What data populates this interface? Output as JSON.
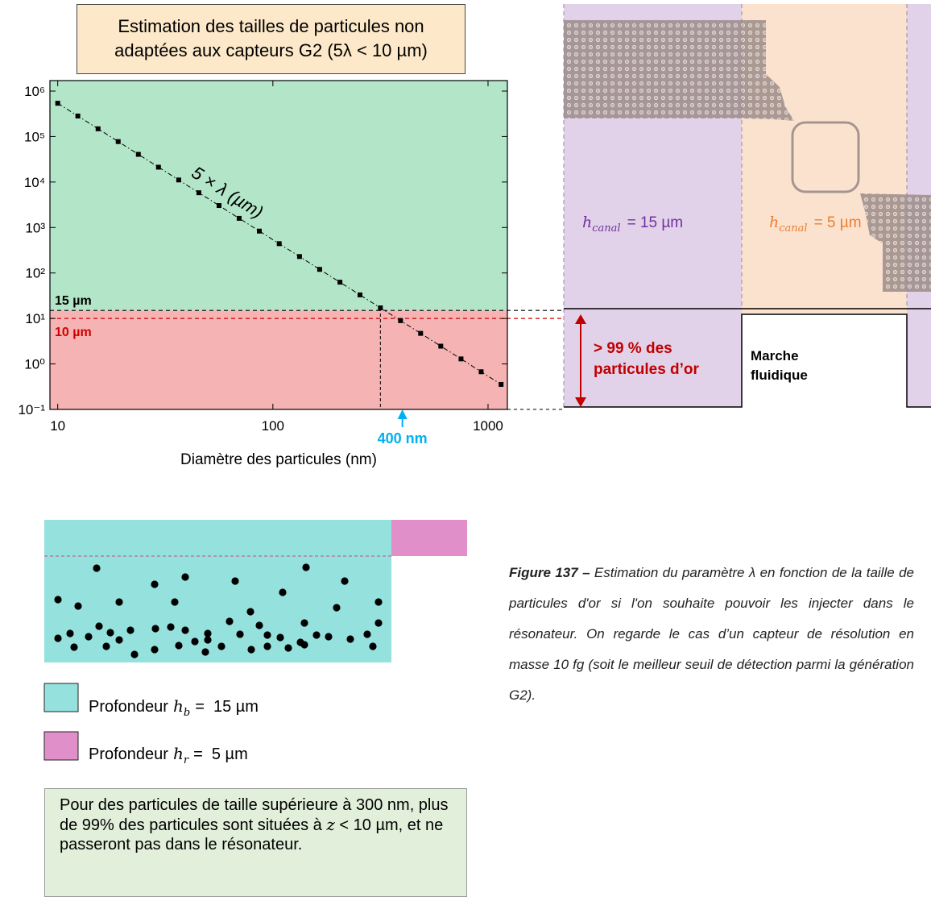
{
  "chart_data": {
    "type": "line",
    "title": "Estimation des tailles de particules non adaptées aux capteurs G2 (5λ < 10 µm)",
    "x_label": "Diamètre des particules (nm)",
    "x_log": true,
    "y_log": true,
    "xlim": [
      9.2,
      1230
    ],
    "ylim": [
      0.1,
      1700000
    ],
    "xticks": [
      10,
      100,
      1000
    ],
    "yticks": [
      {
        "value": 0.1,
        "label": "10⁻¹"
      },
      {
        "value": 1,
        "label": "10⁰"
      },
      {
        "value": 10,
        "label": "10¹"
      },
      {
        "value": 100,
        "label": "10²"
      },
      {
        "value": 1000,
        "label": "10³"
      },
      {
        "value": 10000,
        "label": "10⁴"
      },
      {
        "value": 100000,
        "label": "10⁵"
      },
      {
        "value": 1000000,
        "label": "10⁶"
      }
    ],
    "x": [
      10,
      12.4,
      15.4,
      19.1,
      23.7,
      29.4,
      36.5,
      45.3,
      56.2,
      69.7,
      86.5,
      107,
      133,
      165,
      205,
      254,
      316,
      392,
      486,
      603,
      749,
      929,
      1150
    ],
    "series": [
      {
        "name": "5 × λ (µm)",
        "color": "#000000",
        "values": [
          540000,
          283000,
          148000,
          77500,
          40600,
          21200,
          11100,
          5810,
          3040,
          1590,
          834,
          441,
          230,
          120,
          62.7,
          33.0,
          17.1,
          8.96,
          4.7,
          2.46,
          1.29,
          0.673,
          0.355
        ]
      }
    ],
    "region_colors": [
      "#f5b3b3",
      "#b3e6c9"
    ],
    "thresholds": [
      {
        "label": "15 µm",
        "value": 15,
        "color": "#000000"
      },
      {
        "label": "10 µm",
        "value": 10,
        "color": "#d00000"
      }
    ],
    "marker": {
      "label": "400 nm",
      "x": 400,
      "color": "#00b0f0"
    }
  },
  "diagram": {
    "left_label": {
      "symbol": "h",
      "sub": "canal",
      "text": "= 15 µm"
    },
    "right_label": {
      "symbol": "h",
      "sub": "canal",
      "text": "= 5 µm"
    },
    "arrow_label": [
      "> 99 % des",
      "particules d’or"
    ],
    "step_label": [
      "Marche",
      "fluidique"
    ]
  },
  "legend": [
    {
      "prefix": "Profondeur",
      "symbol": "h",
      "sub": "b",
      "text": "=  15 µm"
    },
    {
      "prefix": "Profondeur",
      "symbol": "h",
      "sub": "r",
      "text": "=  5 µm"
    }
  ],
  "note": [
    "Pour des particules de taille supérieure à 300 nm, plus de 99% des particules sont situées à ",
    "z",
    " < 10 µm, et ne passeront pas dans le résonateur."
  ],
  "caption": {
    "label": "Figure 137 –",
    "text": " Estimation du paramètre λ en fonction de la taille de particules d'or si l'on souhaite pouvoir les injecter dans le résonateur. On regarde le cas d’un capteur de résolution en masse 10 fg (soit le meilleur seuil de détection parmi la génération G2)."
  }
}
